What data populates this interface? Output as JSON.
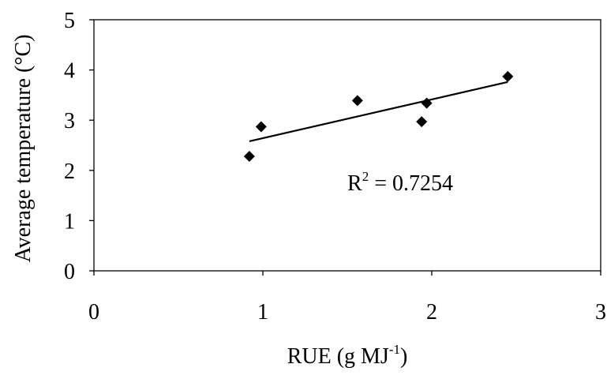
{
  "chart_data": {
    "type": "scatter",
    "title": "",
    "xlabel": "RUE (g MJ",
    "xlabel_sup": "-1",
    "xlabel_suffix": ")",
    "ylabel": "Average temperature (°C)",
    "xlim": [
      0,
      3
    ],
    "ylim": [
      0,
      5
    ],
    "x_ticks": [
      "0",
      "1",
      "2",
      "3"
    ],
    "y_ticks": [
      "0",
      "1",
      "2",
      "3",
      "4",
      "5"
    ],
    "grid": false,
    "legend": "none",
    "marker": "diamond",
    "marker_color": "#000000",
    "points": [
      {
        "x": 0.92,
        "y": 2.28
      },
      {
        "x": 0.99,
        "y": 2.87
      },
      {
        "x": 1.56,
        "y": 3.39
      },
      {
        "x": 1.94,
        "y": 2.97
      },
      {
        "x": 1.97,
        "y": 3.34
      },
      {
        "x": 2.45,
        "y": 3.87
      }
    ],
    "trendline": {
      "type": "linear",
      "x": [
        0.92,
        2.45
      ],
      "y": [
        2.58,
        3.76
      ]
    },
    "annotation": {
      "text": "R",
      "sup": "2",
      "suffix": " = 0.7254",
      "x": 1.5,
      "y": 1.6
    }
  }
}
